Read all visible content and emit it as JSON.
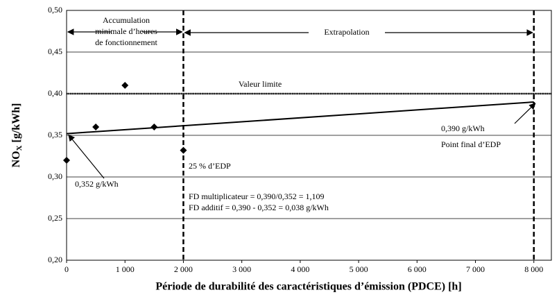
{
  "chart_data": {
    "type": "scatter",
    "x_label": "Période de durabilité des caractéristiques d’émission (PDCE) [h]",
    "y_label": {
      "main": "NO",
      "sub": "X",
      "unit": "[g/kWh]"
    },
    "x": [
      0,
      500,
      1000,
      1500,
      2000
    ],
    "values": [
      0.32,
      0.36,
      0.41,
      0.36,
      0.332
    ],
    "color": "#000000",
    "trend": {
      "x": [
        0,
        8000
      ],
      "values": [
        0.352,
        0.39
      ]
    },
    "limit": 0.4,
    "vlines": [
      2000,
      8000
    ],
    "xlim": [
      0,
      8300
    ],
    "ylim": [
      0.2,
      0.5
    ],
    "xticks": [
      0,
      {
        "value": 1000,
        "label": "1 000"
      },
      {
        "value": 2000,
        "label": "2 000"
      },
      {
        "value": 3000,
        "label": "3 000"
      },
      {
        "value": 4000,
        "label": "4 000"
      },
      {
        "value": 5000,
        "label": "5 000"
      },
      {
        "value": 6000,
        "label": "6 000"
      },
      {
        "value": 7000,
        "label": "7 000"
      },
      {
        "value": 8000,
        "label": "8 000"
      }
    ],
    "yticks": [
      {
        "value": 0.2,
        "label": "0,20"
      },
      {
        "value": 0.25,
        "label": "0,25"
      },
      {
        "value": 0.3,
        "label": "0,30"
      },
      {
        "value": 0.35,
        "label": "0,35"
      },
      {
        "value": 0.4,
        "label": "0,40"
      },
      {
        "value": 0.45,
        "label": "0,45"
      },
      {
        "value": 0.5,
        "label": "0,50"
      }
    ],
    "grid": true,
    "annotations": {
      "accumulation": [
        "Accumulation",
        "minimale d’heures",
        "de fonctionnement"
      ],
      "extrapolation": "Extrapolation",
      "limit_label": "Valeur limite",
      "end_value": "0,390 g/kWh",
      "end_label": "Point final d’EDP",
      "quarter": "25 % d’EDP",
      "start_value": "0,352 g/kWh",
      "fd_mult": "FD multiplicateur = 0,390/0,352 = 1,109",
      "fd_add": "FD additif = 0,390 - 0,352 = 0,038 g/kWh"
    }
  }
}
